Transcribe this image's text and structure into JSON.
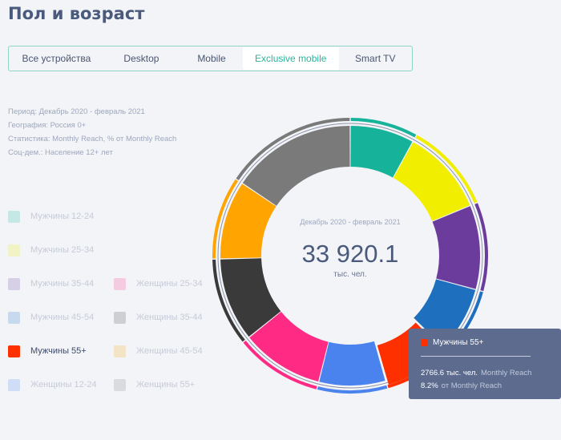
{
  "page": {
    "title": "Пол и возраст"
  },
  "tabs": [
    {
      "label": "Все устройства",
      "active": false
    },
    {
      "label": "Desktop",
      "active": false
    },
    {
      "label": "Mobile",
      "active": false
    },
    {
      "label": "Exclusive mobile",
      "active": true
    },
    {
      "label": "Smart TV",
      "active": false
    }
  ],
  "meta": {
    "period": "Период: Декабрь 2020 - февраль 2021",
    "geography": "География: Россия 0+",
    "statistic": "Статистика: Monthly Reach, % от Monthly Reach",
    "audience": "Соц-дем.: Население 12+ лет"
  },
  "legend": [
    {
      "label": "Мужчины 12-24",
      "color": "#16b39a",
      "active": false
    },
    {
      "label": "Мужчины 25-34",
      "color": "#f2ee00",
      "active": false
    },
    {
      "label": "Мужчины 35-44",
      "color": "#6c3c9c",
      "active": false
    },
    {
      "label": "Мужчины 45-54",
      "color": "#1f6fbf",
      "active": false
    },
    {
      "label": "Мужчины 55+",
      "color": "#ff3000",
      "active": true
    },
    {
      "label": "Женщины 12-24",
      "color": "#4a82ee",
      "active": false
    },
    {
      "label": "Женщины 25-34",
      "color": "#ff2a84",
      "active": false
    },
    {
      "label": "Женщины 35-44",
      "color": "#3a3a3a",
      "active": false
    },
    {
      "label": "Женщины 45-54",
      "color": "#ffa400",
      "active": false
    },
    {
      "label": "Женщины 55+",
      "color": "#7a7a7a",
      "active": false
    }
  ],
  "center": {
    "period": "Декабрь 2020 - февраль 2021",
    "total": "33 920.1",
    "unit": "тыс. чел."
  },
  "tooltip": {
    "series": "Мужчины 55+",
    "value": "2766.6 тыс. чел.",
    "value_metric": "Monthly Reach",
    "share": "8.2%",
    "share_metric": "от Monthly Reach"
  },
  "chart_data": {
    "type": "pie",
    "variant": "donut",
    "categories": [
      "Мужчины 12-24",
      "Мужчины 25-34",
      "Мужчины 35-44",
      "Мужчины 45-54",
      "Мужчины 55+",
      "Женщины 12-24",
      "Женщины 25-34",
      "Женщины 35-44",
      "Женщины 45-54",
      "Женщины 55+"
    ],
    "values": [
      8.0,
      10.7,
      10.5,
      8.2,
      8.2,
      8.3,
      10.3,
      10.4,
      9.8,
      15.6
    ],
    "colors": [
      "#16b39a",
      "#f2ee00",
      "#6c3c9c",
      "#1f6fbf",
      "#ff3000",
      "#4a82ee",
      "#ff2a84",
      "#3a3a3a",
      "#ffa400",
      "#7a7a7a"
    ],
    "highlighted": "Мужчины 55+",
    "outer_ring": [
      {
        "group": "Мужчины",
        "share": 45.6
      },
      {
        "group": "Женщины",
        "share": 54.4
      }
    ]
  }
}
